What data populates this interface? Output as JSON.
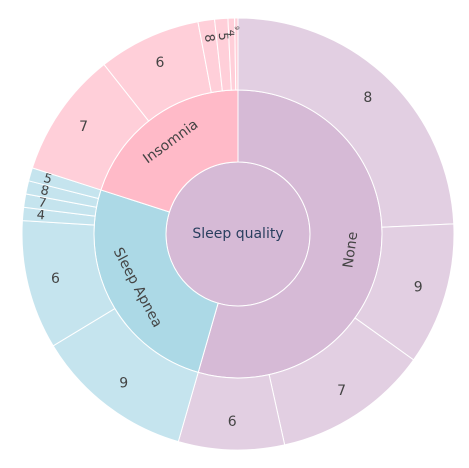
{
  "chart_data": {
    "type": "sunburst",
    "title": "",
    "root": {
      "label": "Sleep quality"
    },
    "colors": {
      "root": "#d6bad6",
      "None": "#d6bad6",
      "Insomnia": "#ffbac8",
      "Sleep Apnea": "#acd9e6",
      "separator": "#ffffff",
      "label_dark": "#444444",
      "label_root": "#2a3f5f"
    },
    "groups": [
      {
        "name": "None",
        "children": [
          {
            "label": "8",
            "value": 98
          },
          {
            "label": "9",
            "value": 43
          },
          {
            "label": "7",
            "value": 47
          },
          {
            "label": "6",
            "value": 32
          }
        ]
      },
      {
        "name": "Sleep Apnea",
        "children": [
          {
            "label": "9",
            "value": 48
          },
          {
            "label": "6",
            "value": 39
          },
          {
            "label": "4",
            "value": 4
          },
          {
            "label": "7",
            "value": 4
          },
          {
            "label": "8",
            "value": 4
          },
          {
            "label": "5",
            "value": 4
          }
        ]
      },
      {
        "name": "Insomnia",
        "children": [
          {
            "label": "7",
            "value": 38
          },
          {
            "label": "6",
            "value": 31
          },
          {
            "label": "8",
            "value": 5
          },
          {
            "label": "5",
            "value": 4
          },
          {
            "label": "4",
            "value": 2
          },
          {
            "label": "9",
            "value": 1
          }
        ]
      }
    ]
  }
}
